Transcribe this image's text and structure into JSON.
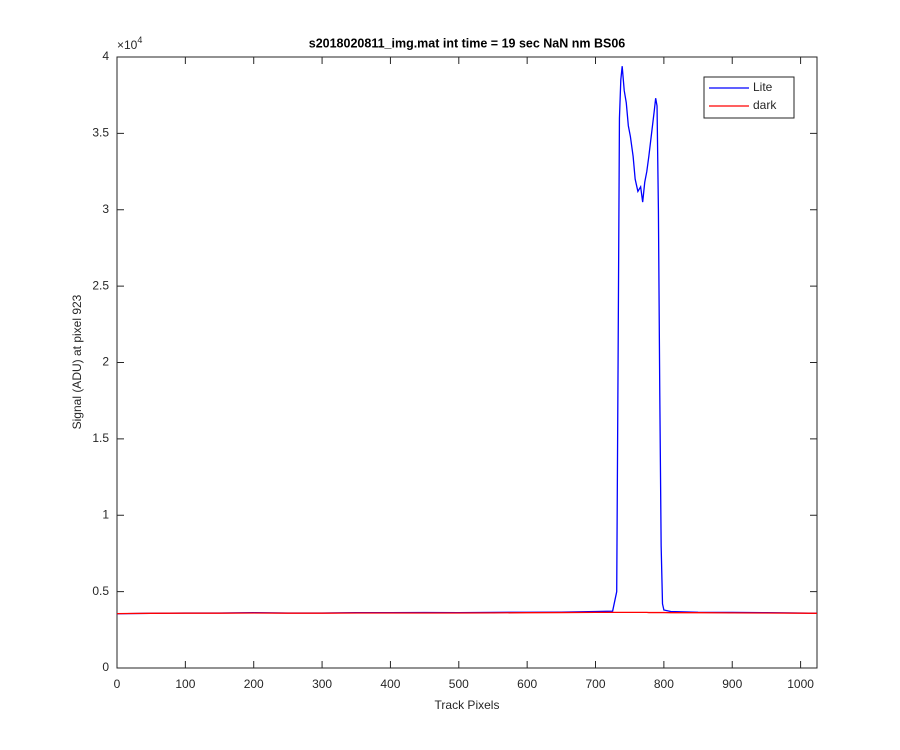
{
  "chart_data": {
    "type": "line",
    "title": "s2018020811_img.mat int time = 19 sec  NaN nm BS06",
    "x_label": "Track Pixels",
    "y_label": "Signal (ADU) at pixel 923",
    "y_multiplier": {
      "base": "×10",
      "exponent": "4"
    },
    "x": [
      0,
      50,
      100,
      150,
      200,
      250,
      300,
      350,
      400,
      450,
      500,
      550,
      600,
      650,
      700,
      725,
      731,
      733,
      735,
      737,
      739,
      742,
      745,
      748,
      751,
      755,
      758,
      762,
      766,
      769,
      772,
      775,
      778,
      782,
      786,
      788,
      790,
      792,
      794,
      796,
      798,
      800,
      810,
      850,
      900,
      950,
      1000,
      1024
    ],
    "series": [
      {
        "name": "Lite",
        "color": "#0000ff",
        "values": [
          3550,
          3580,
          3600,
          3600,
          3620,
          3600,
          3600,
          3620,
          3620,
          3630,
          3620,
          3640,
          3650,
          3660,
          3700,
          3720,
          5000,
          20000,
          36000,
          38500,
          39400,
          37800,
          37000,
          35500,
          34800,
          33500,
          32000,
          31200,
          31500,
          30500,
          31800,
          32500,
          33500,
          35000,
          36500,
          37300,
          36800,
          30000,
          18000,
          8000,
          4200,
          3800,
          3700,
          3650,
          3640,
          3620,
          3600,
          3580
        ]
      },
      {
        "name": "dark",
        "color": "#ff0000",
        "values": [
          3560,
          3580,
          3590,
          3590,
          3600,
          3590,
          3590,
          3600,
          3600,
          3600,
          3600,
          3610,
          3620,
          3630,
          3640,
          3640,
          3640,
          3640,
          3640,
          3640,
          3640,
          3640,
          3640,
          3640,
          3640,
          3640,
          3640,
          3640,
          3640,
          3640,
          3640,
          3640,
          3630,
          3630,
          3630,
          3630,
          3630,
          3630,
          3630,
          3630,
          3630,
          3630,
          3620,
          3620,
          3610,
          3600,
          3590,
          3580
        ]
      }
    ],
    "xlim": [
      0,
      1024
    ],
    "ylim": [
      0,
      40000
    ],
    "xticks": [
      0,
      100,
      200,
      300,
      400,
      500,
      600,
      700,
      800,
      900,
      1000
    ],
    "yticks": [
      0,
      {
        "value": 5000,
        "label": "0.5"
      },
      {
        "value": 10000,
        "label": "1"
      },
      {
        "value": 15000,
        "label": "1.5"
      },
      {
        "value": 20000,
        "label": "2"
      },
      {
        "value": 25000,
        "label": "2.5"
      },
      {
        "value": 30000,
        "label": "3"
      },
      {
        "value": 35000,
        "label": "3.5"
      },
      {
        "value": 40000,
        "label": "4"
      }
    ],
    "grid": false,
    "legend": "upper-right"
  }
}
